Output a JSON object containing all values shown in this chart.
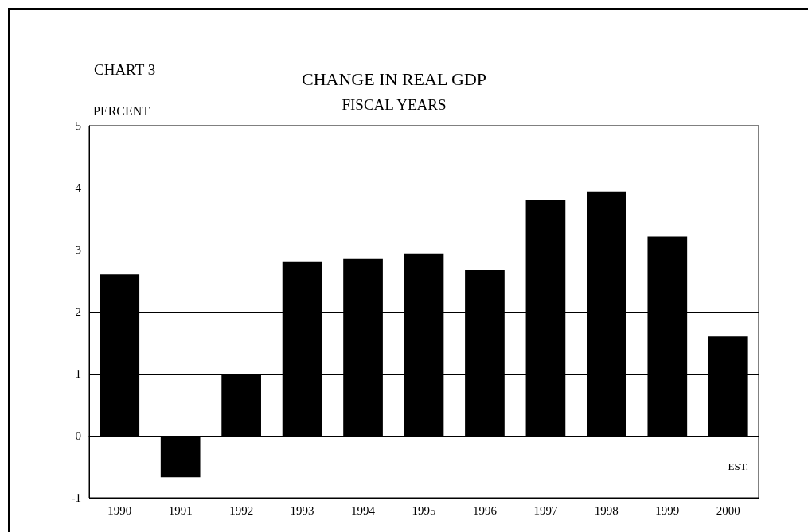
{
  "chart_data": {
    "type": "bar",
    "title": "CHANGE IN REAL GDP",
    "subtitle": "FISCAL YEARS",
    "ylabel": "PERCENT",
    "annotations": [
      "CHART 3",
      "EST."
    ],
    "categories": [
      "1990",
      "1991",
      "1992",
      "1993",
      "1994",
      "1995",
      "1996",
      "1997",
      "1998",
      "1999",
      "2000"
    ],
    "values": [
      2.6,
      -0.67,
      1.0,
      2.81,
      2.85,
      2.94,
      2.67,
      3.8,
      3.94,
      3.21,
      1.6
    ],
    "color": "#000000",
    "ylim": [
      -1,
      5
    ],
    "yticks": [
      -1,
      0,
      1,
      2,
      3,
      4,
      5
    ],
    "grid": "y"
  }
}
